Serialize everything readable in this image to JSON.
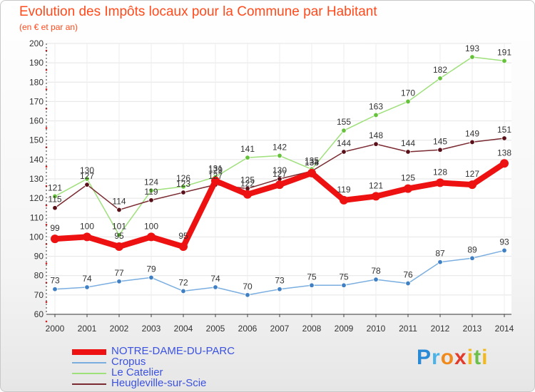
{
  "chart_data": {
    "type": "line",
    "title": "Evolution des Impôts locaux pour la Commune par Habitant",
    "subtitle": "(en € et par an)",
    "xlabel": "",
    "ylabel": "",
    "categories": [
      "2000",
      "2001",
      "2002",
      "2003",
      "2004",
      "2005",
      "2006",
      "2007",
      "2008",
      "2009",
      "2010",
      "2011",
      "2012",
      "2013",
      "2014"
    ],
    "ylim": [
      60,
      200
    ],
    "yticks": [
      60,
      70,
      80,
      90,
      100,
      110,
      120,
      130,
      140,
      150,
      160,
      170,
      180,
      190,
      200
    ],
    "series": [
      {
        "name": "NOTRE-DAME-DU-PARC",
        "values": [
          99,
          100,
          95,
          100,
          95,
          129,
          122,
          127,
          133,
          119,
          121,
          125,
          128,
          127,
          138
        ],
        "color": "#ee1111",
        "line_color": "#ee1111",
        "marker_color": "#ee1111",
        "emphasis": true
      },
      {
        "name": "Cropus",
        "values": [
          73,
          74,
          77,
          79,
          72,
          74,
          70,
          73,
          75,
          75,
          78,
          76,
          87,
          89,
          93
        ],
        "color": "#5b8fc8",
        "line_color": "#7aaee0",
        "marker_color": "#3f7fc4",
        "emphasis": false
      },
      {
        "name": "Le Catelier",
        "values": [
          121,
          130,
          101,
          124,
          126,
          131,
          141,
          142,
          135,
          155,
          163,
          170,
          182,
          193,
          191
        ],
        "color": "#8ad45a",
        "line_color": "#9ee07a",
        "marker_color": "#66c23a",
        "emphasis": false
      },
      {
        "name": "Heugleville-sur-Scie",
        "values": [
          115,
          127,
          114,
          119,
          123,
          127,
          125,
          130,
          134,
          144,
          148,
          144,
          145,
          149,
          151
        ],
        "color": "#6a1a22",
        "line_color": "#7a2a30",
        "marker_color": "#5a1018",
        "emphasis": false
      }
    ]
  },
  "logo": {
    "p": "P",
    "r": "r",
    "o": "o",
    "x": "x",
    "i": "i",
    "t": "t",
    "i2": "i"
  }
}
